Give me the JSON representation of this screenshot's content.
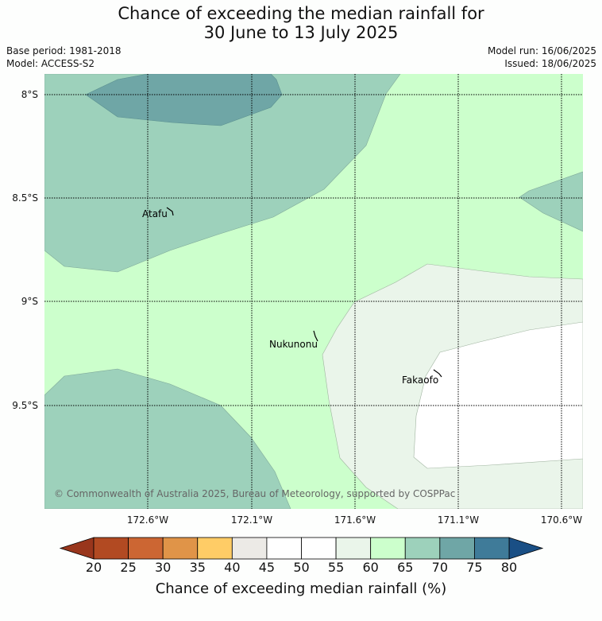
{
  "title_line1": "Chance of exceeding the median rainfall for",
  "title_line2": "30 June to 13 July 2025",
  "base_period": "Base period: 1981-2018",
  "model": "Model: ACCESS-S2",
  "model_run": "Model run: 16/06/2025",
  "issued": "Issued: 18/06/2025",
  "lat_labels": [
    "8°S",
    "8.5°S",
    "9°S",
    "9.5°S"
  ],
  "lon_labels": [
    "172.6°W",
    "172.1°W",
    "171.6°W",
    "171.1°W",
    "170.6°W"
  ],
  "places": [
    "Atafu",
    "Nukunonu",
    "Fakaofo"
  ],
  "copyright": "© Commonwealth of Australia 2025, Bureau of Meteorology, supported by COSPPac",
  "colorbar": {
    "ticks": [
      "20",
      "25",
      "30",
      "35",
      "40",
      "45",
      "50",
      "55",
      "60",
      "65",
      "70",
      "75",
      "80"
    ],
    "colors": [
      "#b24a22",
      "#cc6633",
      "#e09448",
      "#ffcc66",
      "#eceae6",
      "#ffffff",
      "#ffffff",
      "#eaf5ea",
      "#ccffcc",
      "#9dd1bb",
      "#6fa6a6",
      "#3f7b99"
    ],
    "under_color": "#99361c",
    "over_color": "#1a4f85",
    "label": "Chance of exceeding median rainfall (%)"
  },
  "palette": {
    "band_55_60": "#eaf5ea",
    "band_60_65": "#ccffcc",
    "band_65_70": "#9dd1bb",
    "band_70_75": "#6fa6a6",
    "band_45_55": "#ffffff"
  }
}
